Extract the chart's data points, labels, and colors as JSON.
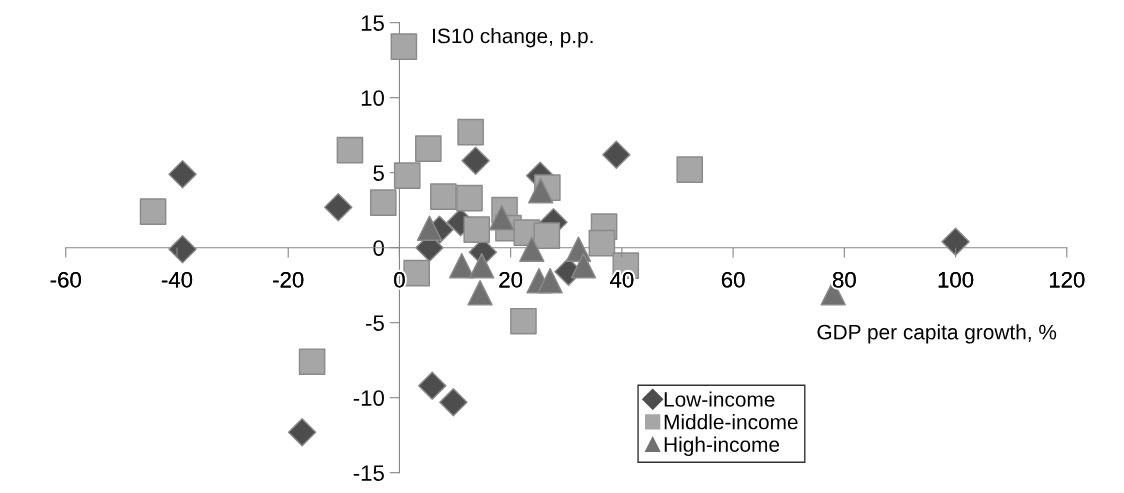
{
  "chart_data": {
    "type": "scatter",
    "xlabel": "GDP per capita growth, %",
    "ylabel": "IS10 change, p.p.",
    "xlim": [
      -60,
      120
    ],
    "xticks": [
      -60,
      -40,
      -20,
      0,
      20,
      40,
      60,
      80,
      100,
      120
    ],
    "ylim": [
      -15,
      15
    ],
    "yticks": [
      -15,
      -10,
      -5,
      0,
      5,
      10,
      15
    ],
    "grid": false,
    "legend": "bottom",
    "series": [
      {
        "name": "Low-income",
        "color": "#4d4d4d",
        "marker": "diamond",
        "x": [
          -39,
          -39,
          -11,
          13.7,
          39,
          25.3,
          11,
          7.2,
          5.4,
          27.7,
          15,
          30.4,
          5.9,
          9.7,
          -17.5,
          100
        ],
        "values": [
          4.9,
          -0.1,
          2.7,
          5.8,
          6.2,
          4.8,
          1.7,
          1.2,
          0,
          1.7,
          -0.3,
          -1.6,
          -9.2,
          -10.3,
          -12.3,
          0.4
        ]
      },
      {
        "name": "Middle-income",
        "color": "#a6a6a6",
        "marker": "square",
        "x": [
          -44.3,
          -8.9,
          1.4,
          -2.9,
          5.2,
          12.8,
          7.9,
          12.6,
          26.6,
          18.9,
          13.9,
          19.6,
          22.9,
          26.5,
          36.8,
          36.4,
          40.7,
          3.1,
          22.3,
          0.8,
          52.2,
          -15.7
        ],
        "values": [
          2.4,
          6.5,
          4.8,
          3.0,
          6.6,
          7.7,
          3.4,
          3.3,
          4.0,
          2.5,
          1.2,
          1.3,
          1.0,
          0.8,
          1.4,
          0.3,
          -1.2,
          -1.7,
          -4.9,
          13.4,
          5.2,
          -7.6
        ]
      },
      {
        "name": "High-income",
        "color": "#707070",
        "marker": "triangle",
        "x": [
          5.4,
          25.4,
          18.4,
          23.8,
          11.2,
          14.8,
          14.5,
          25.1,
          27.1,
          32.2,
          33.1,
          78
        ],
        "values": [
          1.3,
          3.8,
          2.0,
          -0.1,
          -1.2,
          -1.2,
          -3.0,
          -2.2,
          -2.2,
          -0.1,
          -1.2,
          -3.0
        ]
      }
    ]
  }
}
